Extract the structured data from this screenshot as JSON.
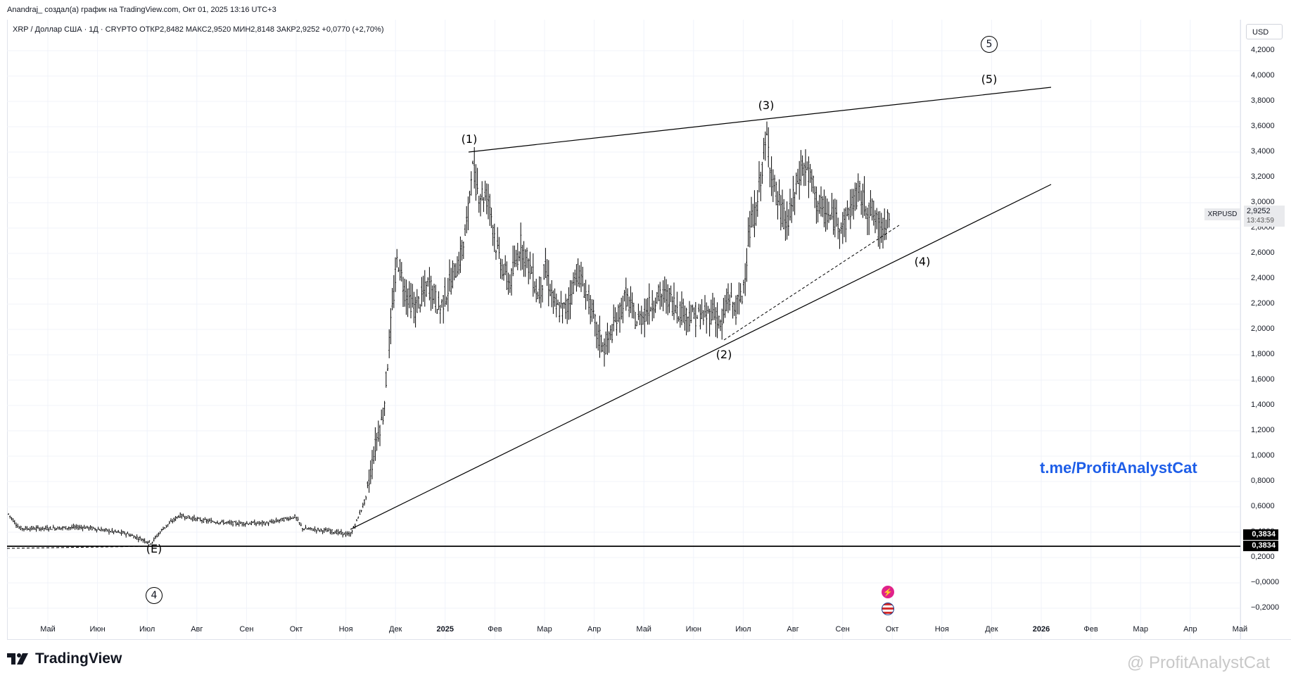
{
  "header": {
    "author_line": "Anandraj_ создал(а) график на TradingView.com, Окт 01, 2025 13:16 UTC+3"
  },
  "symbol": {
    "line": "XRP / Доллар США · 1Д · CRYPTO  ОТКР2,8482  МАКС2,9520  МИН2,8148  ЗАКР2,9252  +0,0770 (+2,70%)",
    "ticker": "XRPUSD",
    "last_price": "2,9252",
    "countdown": "13:43:59"
  },
  "currency": "USD",
  "price_axis": [
    "4,2000",
    "4,0000",
    "3,8000",
    "3,6000",
    "3,4000",
    "3,2000",
    "3,0000",
    "2,8000",
    "2,6000",
    "2,4000",
    "2,2000",
    "2,0000",
    "1,8000",
    "1,6000",
    "1,4000",
    "1,2000",
    "1,0000",
    "0,8000",
    "0,6000",
    "0,4000",
    "0,2000",
    "−0,0000",
    "−0,2000"
  ],
  "level_labels": [
    "0,3834",
    "0,3834"
  ],
  "time_axis": [
    {
      "label": "Май",
      "bold": false
    },
    {
      "label": "Июн",
      "bold": false
    },
    {
      "label": "Июл",
      "bold": false
    },
    {
      "label": "Авг",
      "bold": false
    },
    {
      "label": "Сен",
      "bold": false
    },
    {
      "label": "Окт",
      "bold": false
    },
    {
      "label": "Ноя",
      "bold": false
    },
    {
      "label": "Дек",
      "bold": false
    },
    {
      "label": "2025",
      "bold": true
    },
    {
      "label": "Фев",
      "bold": false
    },
    {
      "label": "Мар",
      "bold": false
    },
    {
      "label": "Апр",
      "bold": false
    },
    {
      "label": "Май",
      "bold": false
    },
    {
      "label": "Июн",
      "bold": false
    },
    {
      "label": "Июл",
      "bold": false
    },
    {
      "label": "Авг",
      "bold": false
    },
    {
      "label": "Сен",
      "bold": false
    },
    {
      "label": "Окт",
      "bold": false
    },
    {
      "label": "Ноя",
      "bold": false
    },
    {
      "label": "Дек",
      "bold": false
    },
    {
      "label": "2026",
      "bold": true
    },
    {
      "label": "Фев",
      "bold": false
    },
    {
      "label": "Мар",
      "bold": false
    },
    {
      "label": "Апр",
      "bold": false
    },
    {
      "label": "Май",
      "bold": false
    }
  ],
  "wave_labels": {
    "w1": "(1)",
    "w2": "(2)",
    "w3": "(3)",
    "w4": "(4)",
    "w5": "(5)",
    "wE": "(E)",
    "circle5": "5",
    "circle4": "4"
  },
  "telegram": "t.me/ProfitAnalystCat",
  "brand": "TradingView",
  "watermark": "@ ProfitAnalystCat",
  "colors": {
    "bar": "#000000",
    "link": "#1e5ee8",
    "level": "#000000"
  },
  "icons": [
    "tradingview-logo-icon",
    "lightning-event-icon",
    "us-flag-event-icon",
    "cat-watermark-icon"
  ]
}
